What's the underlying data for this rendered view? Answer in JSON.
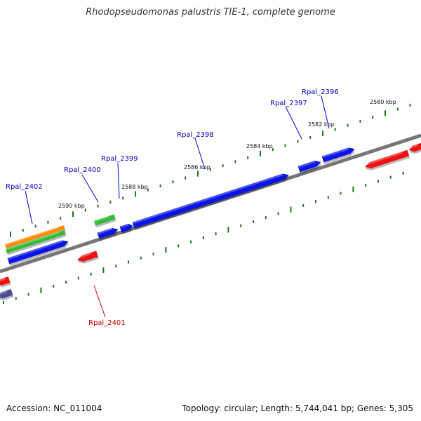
{
  "title": "Rhodopseudomonas palustris TIE-1, complete genome",
  "footer": {
    "accession": "Accession: NC_011004",
    "summary": "Topology: circular; Length: 5,744,041 bp; Genes: 5,305"
  },
  "ruler_labels": [
    "2580 kbp",
    "2582 kbp",
    "2584 kbp",
    "2586 kbp",
    "2588 kbp",
    "2590 kbp"
  ],
  "gene_labels": [
    {
      "name": "Rpal_2396",
      "strand": "forward"
    },
    {
      "name": "Rpal_2397",
      "strand": "forward"
    },
    {
      "name": "Rpal_2398",
      "strand": "forward"
    },
    {
      "name": "Rpal_2399",
      "strand": "forward"
    },
    {
      "name": "Rpal_2400",
      "strand": "forward"
    },
    {
      "name": "Rpal_2402",
      "strand": "forward"
    },
    {
      "name": "Rpal_2401",
      "strand": "reverse"
    }
  ],
  "colors": {
    "forward_gene": "#0a14e6",
    "reverse_gene": "#ee1111",
    "rna_green": "#33bb33",
    "orange": "#ff8c00",
    "purple": "#4a4a9a",
    "tick": "#1a7a1a",
    "backbone": "#777777",
    "label_forward": "#0000cc",
    "label_reverse": "#cc0000"
  }
}
